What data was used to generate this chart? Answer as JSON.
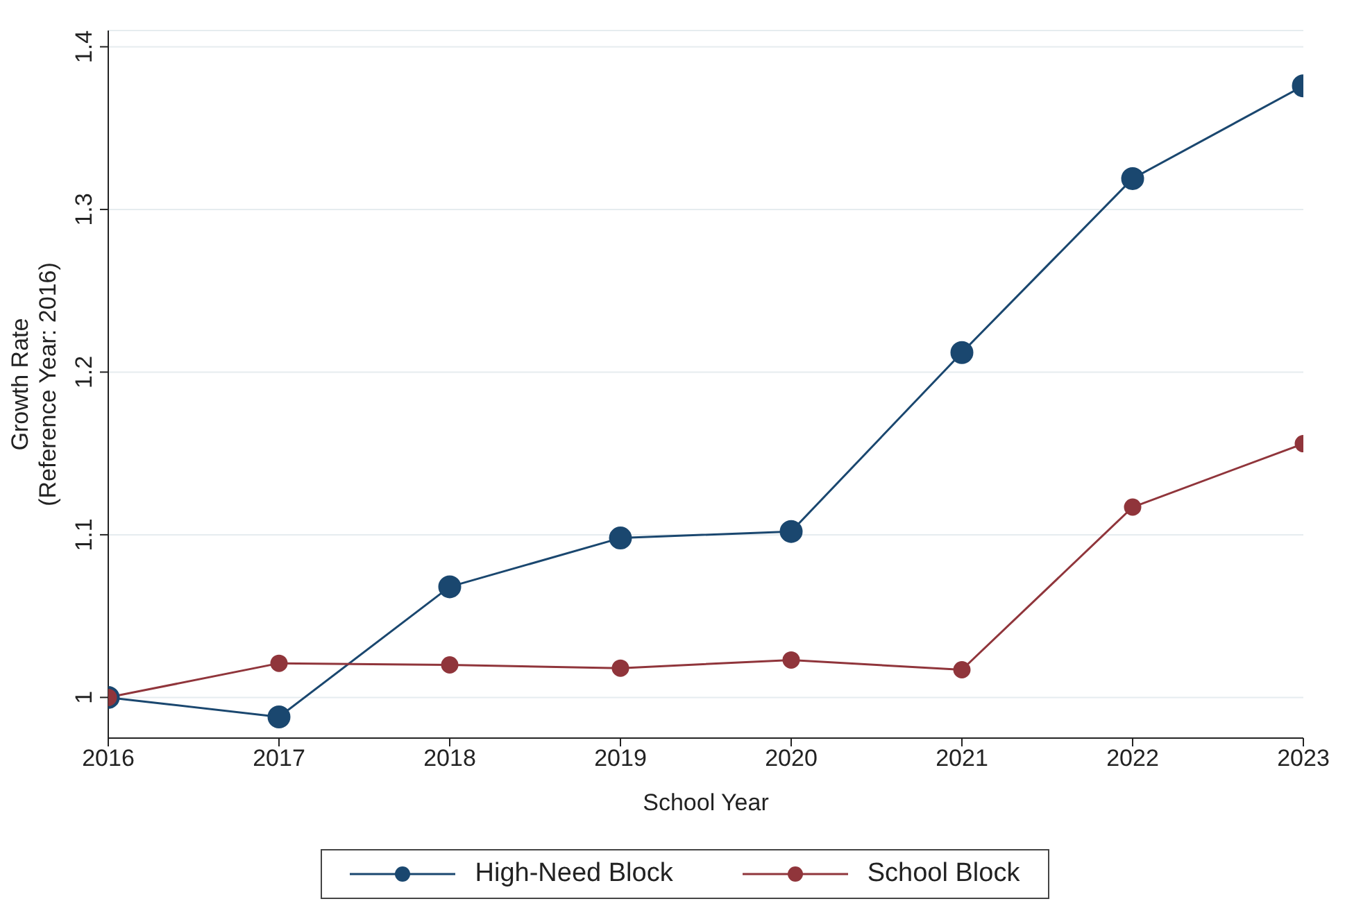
{
  "chart_data": {
    "type": "line",
    "xlabel": "School Year",
    "ylabel": "Growth Rate\n(Reference Year: 2016)",
    "x": [
      2016,
      2017,
      2018,
      2019,
      2020,
      2021,
      2022,
      2023
    ],
    "series": [
      {
        "name": "High-Need Block",
        "color": "#1a476f",
        "values": [
          1.0,
          0.988,
          1.068,
          1.098,
          1.102,
          1.212,
          1.319,
          1.376
        ]
      },
      {
        "name": "School Block",
        "color": "#90353b",
        "values": [
          1.0,
          1.021,
          1.02,
          1.018,
          1.023,
          1.017,
          1.117,
          1.156
        ]
      }
    ],
    "xlim": [
      2016,
      2023
    ],
    "xticks": [
      2016,
      2017,
      2018,
      2019,
      2020,
      2021,
      2022,
      2023
    ],
    "ylim": [
      0.975,
      1.41
    ],
    "yticks": [
      1,
      1.1,
      1.2,
      1.3,
      1.4
    ],
    "grid": "y",
    "legend": "bottom",
    "marker": "circle",
    "line_style": "solid"
  }
}
